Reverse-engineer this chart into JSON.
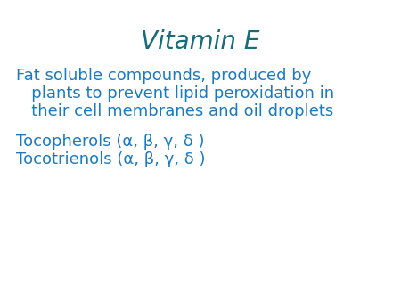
{
  "title": "Vitamin E",
  "title_color": "#1a6b7a",
  "title_fontsize": 20,
  "body_color": "#1a7abf",
  "body_fontsize": 13,
  "background_color": "#ffffff",
  "line1": "Fat soluble compounds, produced by",
  "line2": "   plants to prevent lipid peroxidation in",
  "line3": "   their cell membranes and oil droplets",
  "line4": "Tocopherols (α, β, γ, δ )",
  "line5": "Tocotrienols (α, β, γ, δ )"
}
